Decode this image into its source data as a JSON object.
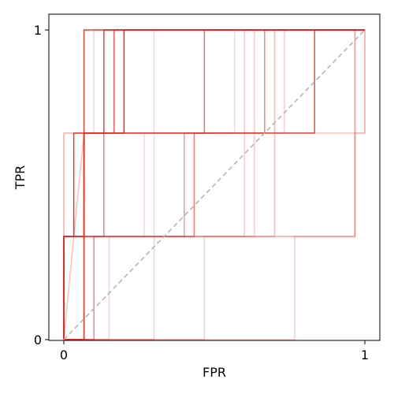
{
  "chart_data": {
    "type": "line",
    "title": "",
    "xlabel": "FPR",
    "ylabel": "TPR",
    "xlim": [
      -0.05,
      1.05
    ],
    "ylim": [
      -0.0,
      1.05
    ],
    "x_ticks": [
      {
        "value": 0,
        "label": "0"
      },
      {
        "value": 1,
        "label": "1"
      }
    ],
    "y_ticks": [
      {
        "value": 0,
        "label": "0"
      },
      {
        "value": 1,
        "label": "1"
      }
    ],
    "grid": false,
    "line_color": "#e8261e",
    "diagonal_color": "#b4b4b4",
    "diagonal": {
      "x": [
        0,
        1
      ],
      "y": [
        0,
        1
      ],
      "style": "dashed"
    },
    "series": [
      {
        "x": [
          0,
          0,
          0.033,
          0.033,
          0.067,
          0.067,
          1
        ],
        "y": [
          0,
          0.333,
          0.333,
          0.667,
          0.667,
          1,
          1
        ],
        "opacity": 0.9
      },
      {
        "x": [
          0,
          0,
          0.067,
          0.067,
          0.133,
          0.133,
          1
        ],
        "y": [
          0,
          0.333,
          0.333,
          0.667,
          0.667,
          1,
          1
        ],
        "opacity": 0.85
      },
      {
        "x": [
          0,
          0,
          0.067,
          0.067,
          0.2,
          0.2,
          1
        ],
        "y": [
          0,
          0.333,
          0.333,
          0.667,
          0.667,
          1,
          1
        ],
        "opacity": 0.85
      },
      {
        "x": [
          0,
          0,
          0.067,
          0.067,
          0.167,
          0.167,
          1
        ],
        "y": [
          0,
          0.333,
          0.333,
          0.667,
          0.667,
          1,
          1
        ],
        "opacity": 0.8
      },
      {
        "x": [
          0,
          0,
          0.067,
          0.067,
          0.467,
          0.467,
          1
        ],
        "y": [
          0,
          0.333,
          0.333,
          0.667,
          0.667,
          1,
          1
        ],
        "opacity": 0.7
      },
      {
        "x": [
          0,
          0,
          0.067,
          0.067,
          0.833,
          0.833,
          1
        ],
        "y": [
          0,
          0.333,
          0.333,
          0.667,
          0.667,
          1,
          1
        ],
        "opacity": 0.7
      },
      {
        "x": [
          0,
          0.067,
          0.067,
          0.133,
          0.133,
          0.2,
          0.2,
          1
        ],
        "y": [
          0,
          0,
          0.333,
          0.333,
          0.667,
          0.667,
          1,
          1
        ],
        "opacity": 0.65
      },
      {
        "x": [
          0,
          0.1,
          0.1,
          0.433,
          0.433,
          0.667,
          0.667,
          1
        ],
        "y": [
          0,
          0,
          0.333,
          0.333,
          0.667,
          0.667,
          1,
          1
        ],
        "opacity": 0.6
      },
      {
        "x": [
          0,
          0.067,
          0.067,
          0.4,
          0.4,
          0.833,
          0.833,
          1
        ],
        "y": [
          0,
          0,
          0.333,
          0.333,
          0.667,
          0.667,
          1,
          1
        ],
        "opacity": 0.5
      },
      {
        "x": [
          0,
          0.067,
          0.067,
          0.967,
          0.967,
          1,
          1
        ],
        "y": [
          0,
          0,
          0.333,
          0.333,
          0.667,
          0.667,
          1
        ],
        "opacity": 0.45
      },
      {
        "x": [
          0,
          0.033,
          0.033,
          0.067,
          0.067,
          0.967,
          0.967
        ],
        "y": [
          0,
          0.333,
          0.333,
          0.667,
          0.667,
          0.667,
          1
        ],
        "opacity": 0.3
      },
      {
        "x": [
          0,
          0.067,
          0.067,
          0.7,
          0.7,
          1
        ],
        "y": [
          0,
          0,
          0.333,
          0.333,
          1,
          1
        ],
        "opacity": 0.3
      },
      {
        "x": [
          0,
          0,
          0.033,
          0.033,
          0.133,
          0.133,
          1
        ],
        "y": [
          0,
          0.333,
          0.333,
          0.667,
          0.667,
          1,
          1
        ],
        "opacity": 0.3
      },
      {
        "x": [
          0,
          0.3,
          0.3,
          0.6,
          0.6,
          1
        ],
        "y": [
          0,
          0,
          0.333,
          0.333,
          1,
          1
        ],
        "opacity": 0.25
      },
      {
        "x": [
          0,
          0.467,
          0.467,
          0.633,
          0.633,
          1
        ],
        "y": [
          0,
          0,
          0.333,
          0.333,
          1,
          1
        ],
        "opacity": 0.25
      },
      {
        "x": [
          0,
          0.767,
          0.767,
          0.967,
          0.967,
          1
        ],
        "y": [
          0,
          0,
          0.333,
          0.333,
          1,
          1
        ],
        "opacity": 0.25
      },
      {
        "x": [
          0,
          0,
          0.233,
          0.233,
          0.733,
          0.733,
          1
        ],
        "y": [
          0,
          0.667,
          0.667,
          0.667,
          0.667,
          1,
          1
        ],
        "opacity": 0.25
      },
      {
        "x": [
          0,
          0,
          0.1,
          0.1,
          0.433,
          0.433,
          1
        ],
        "y": [
          0,
          0.667,
          0.667,
          1,
          1,
          1,
          1
        ],
        "opacity": 0.2
      },
      {
        "x": [
          0,
          0.15,
          0.15,
          0.267,
          0.267,
          0.3,
          0.3,
          1
        ],
        "y": [
          0,
          0,
          0.333,
          0.333,
          0.667,
          0.667,
          1,
          1
        ],
        "opacity": 0.2
      },
      {
        "x": [
          0,
          0,
          0.3,
          0.3,
          0.567,
          0.567,
          1
        ],
        "y": [
          0,
          0.333,
          0.333,
          0.667,
          0.667,
          1,
          1
        ],
        "opacity": 0.2
      }
    ]
  }
}
